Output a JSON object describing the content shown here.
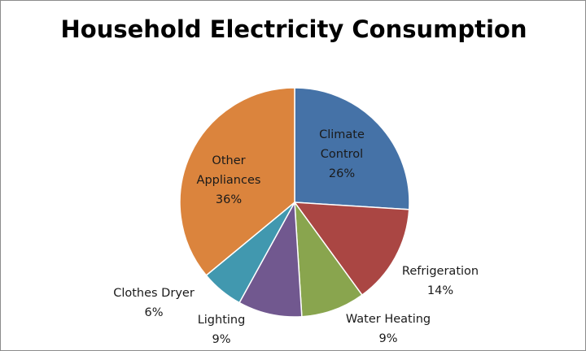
{
  "chart_data": {
    "type": "pie",
    "title": "Household Electricity Consumption",
    "categories": [
      "Climate Control",
      "Refrigeration",
      "Water Heating",
      "Lighting",
      "Clothes Dryer",
      "Other Appliances"
    ],
    "values": [
      26,
      14,
      9,
      9,
      6,
      36
    ],
    "unit": "%",
    "colors": [
      "#4572a7",
      "#aa4643",
      "#89a54e",
      "#71588f",
      "#4198af",
      "#db843d"
    ],
    "slices": [
      {
        "label_lines": [
          "Climate",
          "Control"
        ],
        "value_label": "26%"
      },
      {
        "label_lines": [
          "Refrigeration"
        ],
        "value_label": "14%"
      },
      {
        "label_lines": [
          "Water Heating"
        ],
        "value_label": "9%"
      },
      {
        "label_lines": [
          "Lighting"
        ],
        "value_label": "9%"
      },
      {
        "label_lines": [
          "Clothes Dryer"
        ],
        "value_label": "6%"
      },
      {
        "label_lines": [
          "Other",
          "Appliances"
        ],
        "value_label": "36%"
      }
    ],
    "legend": "none",
    "start_angle_deg": 0,
    "direction": "clockwise"
  }
}
